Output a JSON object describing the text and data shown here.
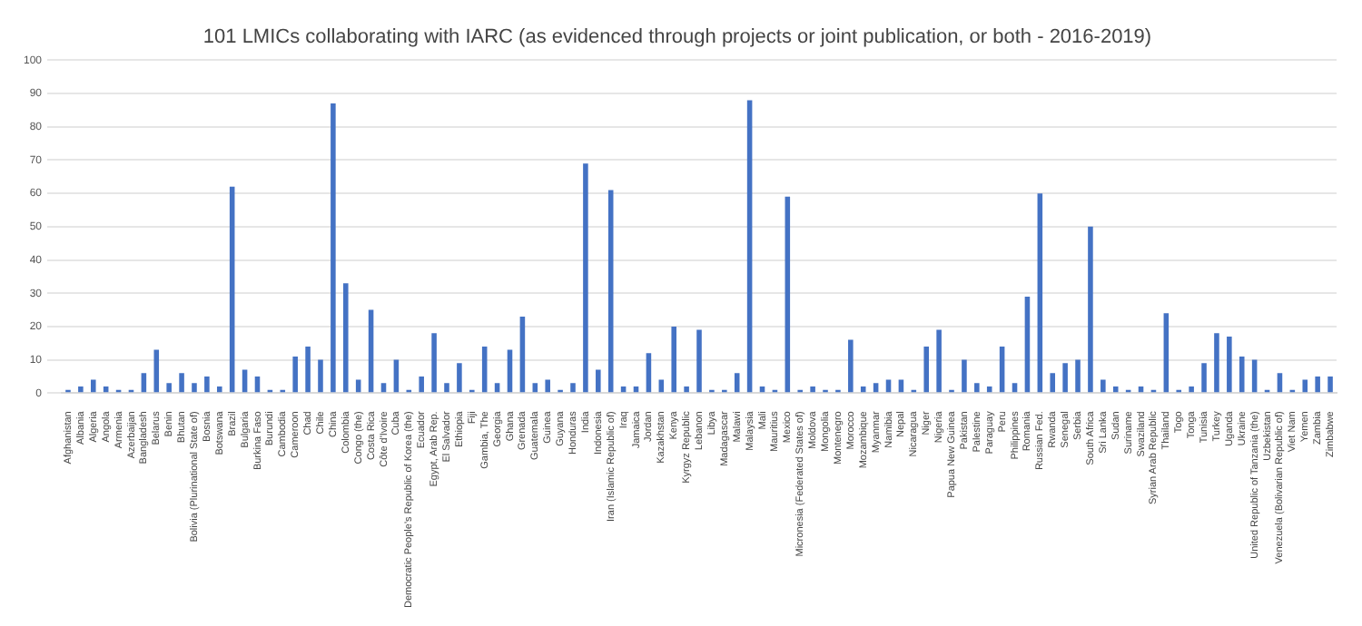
{
  "chart_data": {
    "type": "bar",
    "title": "101 LMICs collaborating with IARC (as evidenced through projects or joint publication, or both - 2016-2019)",
    "categories": [
      "Afghanistan",
      "Albania",
      "Algeria",
      "Angola",
      "Armenia",
      "Azerbaijan",
      "Bangladesh",
      "Belarus",
      "Benin",
      "Bhutan",
      "Bolivia (Plurinational State of)",
      "Bosnia",
      "Botswana",
      "Brazil",
      "Bulgaria",
      "Burkina Faso",
      "Burundi",
      "Cambodia",
      "Cameroon",
      "Chad",
      "Chile",
      "China",
      "Colombia",
      "Congo (the)",
      "Costa Rica",
      "Côte d'Ivoire",
      "Cuba",
      "Democratic People's Republic of Korea (the)",
      "Ecuador",
      "Egypt, Arab Rep.",
      "El Salvador",
      "Ethiopia",
      "Fiji",
      "Gambia, The",
      "Georgia",
      "Ghana",
      "Grenada",
      "Guatemala",
      "Guinea",
      "Guyana",
      "Honduras",
      "India",
      "Indonesia",
      "Iran (Islamic Republic of)",
      "Iraq",
      "Jamaica",
      "Jordan",
      "Kazakhstan",
      "Kenya",
      "Kyrgyz Republic",
      "Lebanon",
      "Libya",
      "Madagascar",
      "Malawi",
      "Malaysia",
      "Mali",
      "Mauritius",
      "Mexico",
      "Micronesia (Federated States of)",
      "Moldova",
      "Mongolia",
      "Montenegro",
      "Morocco",
      "Mozambique",
      "Myanmar",
      "Namibia",
      "Nepal",
      "Nicaragua",
      "Niger",
      "Nigeria",
      "Papua New Guinea",
      "Pakistan",
      "Palestine",
      "Paraguay",
      "Peru",
      "Philippines",
      "Romania",
      "Russian Fed.",
      "Rwanda",
      "Senegal",
      "Serbia",
      "South Africa",
      "Sri Lanka",
      "Sudan",
      "Suriname",
      "Swaziland",
      "Syrian Arab Republic",
      "Thailand",
      "Togo",
      "Tonga",
      "Tunisia",
      "Turkey",
      "Uganda",
      "Ukraine",
      "United Republic of Tanzania (the)",
      "Uzbekistan",
      "Venezuela (Bolivarian Republic of)",
      "Viet Nam",
      "Yemen",
      "Zambia",
      "Zimbabwe"
    ],
    "values": [
      1,
      2,
      4,
      2,
      1,
      1,
      6,
      13,
      3,
      6,
      3,
      5,
      2,
      62,
      7,
      5,
      1,
      1,
      11,
      14,
      10,
      87,
      33,
      4,
      25,
      3,
      10,
      1,
      5,
      18,
      3,
      9,
      1,
      14,
      3,
      13,
      23,
      3,
      4,
      1,
      3,
      69,
      7,
      61,
      2,
      2,
      12,
      4,
      20,
      2,
      19,
      1,
      1,
      6,
      88,
      2,
      1,
      59,
      1,
      2,
      1,
      1,
      16,
      2,
      3,
      4,
      4,
      1,
      14,
      19,
      1,
      10,
      3,
      2,
      14,
      3,
      29,
      60,
      6,
      9,
      10,
      50,
      4,
      2,
      1,
      2,
      1,
      24,
      1,
      2,
      9,
      18,
      17,
      11,
      10,
      1,
      6,
      1,
      4,
      5,
      5
    ],
    "color": "#4472c4",
    "ylim": [
      0,
      100
    ],
    "yticks": [
      0,
      10,
      20,
      30,
      40,
      50,
      60,
      70,
      80,
      90,
      100
    ],
    "grid": "y"
  }
}
